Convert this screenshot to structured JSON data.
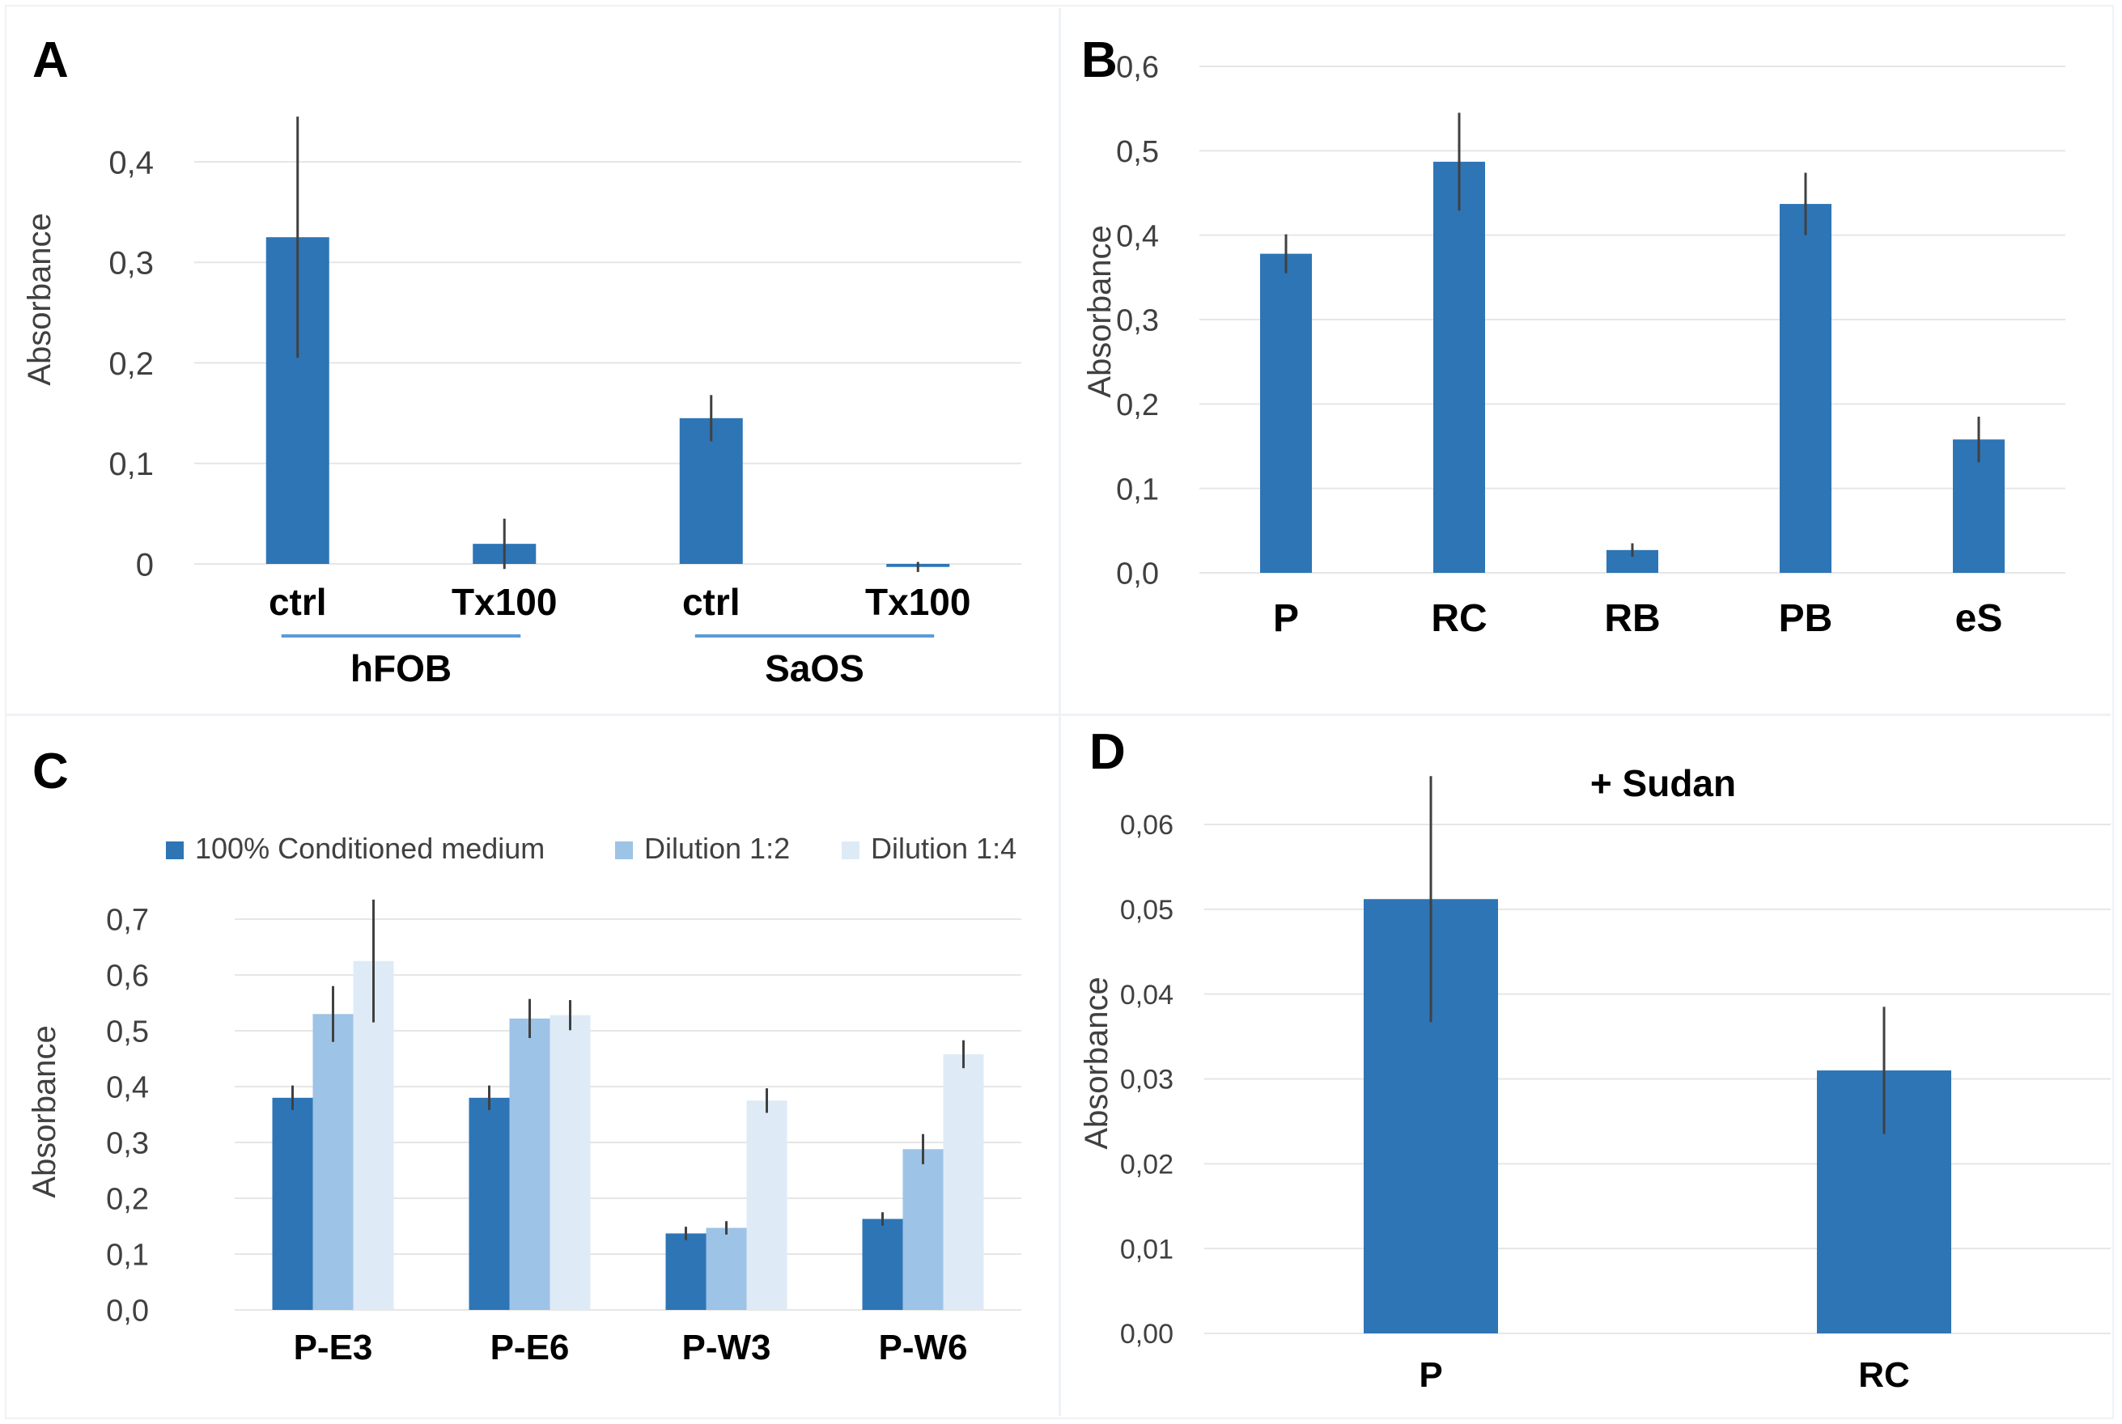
{
  "colors": {
    "series1": "#2e75b6",
    "series2": "#9dc3e6",
    "series3": "#deebf7",
    "grid": "#e6e6e6",
    "errbar": "#404040",
    "text": "#404040",
    "category_text": "#000000",
    "bracket": "#5b9bd5"
  },
  "chart_data": [
    {
      "panel_label": "A",
      "type": "bar",
      "ylabel": "Absorbance",
      "ylim": [
        0,
        0.4
      ],
      "yticks": [
        "0",
        "0,1",
        "0,2",
        "0,3",
        "0,4"
      ],
      "categories": [
        "ctrl",
        "Tx100",
        "ctrl",
        "Tx100"
      ],
      "groups": [
        {
          "label": "hFOB",
          "categories": [
            0,
            1
          ]
        },
        {
          "label": "SaOS",
          "categories": [
            2,
            3
          ]
        }
      ],
      "series": [
        {
          "name": "Absorbance",
          "values": [
            0.325,
            0.02,
            0.145,
            -0.003
          ],
          "errors": [
            0.12,
            0.025,
            0.023,
            0.005
          ]
        }
      ]
    },
    {
      "panel_label": "B",
      "type": "bar",
      "ylabel": "Absorbance",
      "ylim": [
        0,
        0.6
      ],
      "yticks": [
        "0,0",
        "0,1",
        "0,2",
        "0,3",
        "0,4",
        "0,5",
        "0,6"
      ],
      "categories": [
        "P",
        "RC",
        "RB",
        "PB",
        "eS"
      ],
      "series": [
        {
          "name": "Absorbance",
          "values": [
            0.378,
            0.487,
            0.027,
            0.437,
            0.158
          ],
          "errors": [
            0.023,
            0.058,
            0.008,
            0.037,
            0.027
          ]
        }
      ]
    },
    {
      "panel_label": "C",
      "type": "bar",
      "ylabel": "Absorbance",
      "ylim": [
        0,
        0.7
      ],
      "yticks": [
        "0,0",
        "0,1",
        "0,2",
        "0,3",
        "0,4",
        "0,5",
        "0,6",
        "0,7"
      ],
      "categories": [
        "P-E3",
        "P-E6",
        "P-W3",
        "P-W6"
      ],
      "legend": [
        "100% Conditioned medium",
        "Dilution 1:2",
        "Dilution 1:4"
      ],
      "series": [
        {
          "name": "100% Conditioned medium",
          "values": [
            0.38,
            0.38,
            0.137,
            0.163
          ],
          "errors": [
            0.022,
            0.022,
            0.012,
            0.012
          ]
        },
        {
          "name": "Dilution 1:2",
          "values": [
            0.53,
            0.522,
            0.147,
            0.288
          ],
          "errors": [
            0.05,
            0.035,
            0.012,
            0.027
          ]
        },
        {
          "name": "Dilution 1:4",
          "values": [
            0.625,
            0.528,
            0.375,
            0.458
          ],
          "errors": [
            0.11,
            0.027,
            0.022,
            0.025
          ]
        }
      ]
    },
    {
      "panel_label": "D",
      "type": "bar",
      "title": "+ Sudan",
      "ylabel": "Absorbance",
      "ylim": [
        0,
        0.06
      ],
      "yticks": [
        "0,00",
        "0,01",
        "0,02",
        "0,03",
        "0,04",
        "0,05",
        "0,06"
      ],
      "categories": [
        "P",
        "RC"
      ],
      "series": [
        {
          "name": "Absorbance",
          "values": [
            0.0512,
            0.031
          ],
          "errors": [
            0.0145,
            0.0075
          ]
        }
      ]
    }
  ]
}
